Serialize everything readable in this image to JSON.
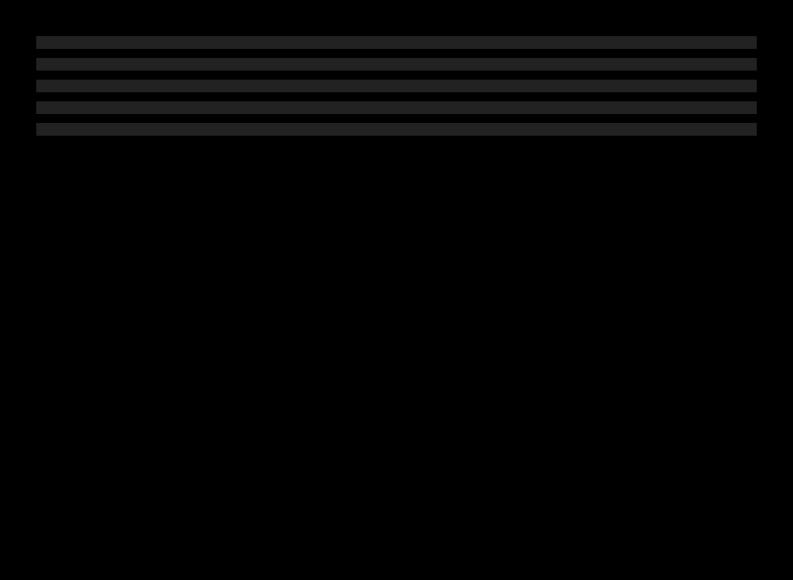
{
  "slots": [
    "",
    "",
    "",
    "",
    ""
  ]
}
